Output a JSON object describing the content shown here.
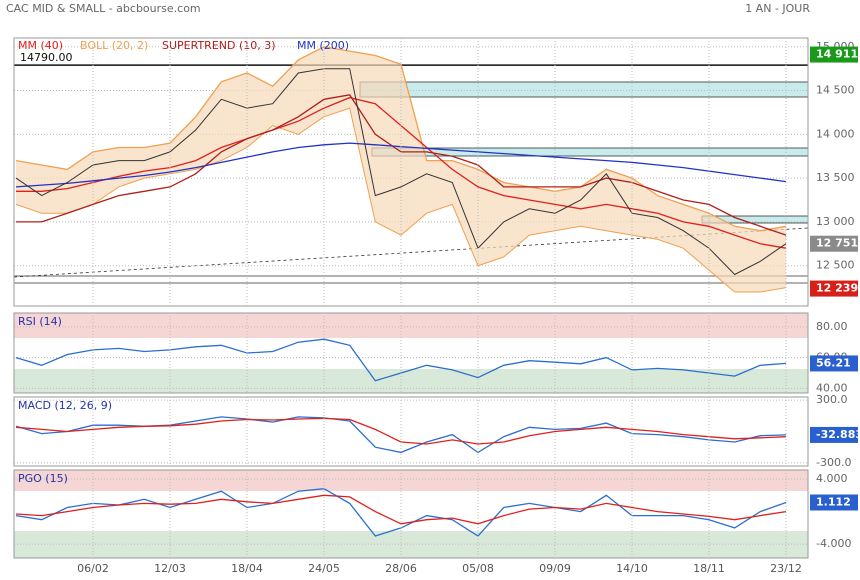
{
  "header": {
    "title": "CAC MID & SMALL - abcbourse.com",
    "period": "1 AN - JOUR"
  },
  "chart_data": [
    {
      "type": "line",
      "ylim": [
        12040,
        15100
      ],
      "yticks": [
        {
          "value": 15000,
          "label": "15 000"
        },
        {
          "value": 14500,
          "label": "14 500"
        },
        {
          "value": 14000,
          "label": "14 000"
        },
        {
          "value": 13500,
          "label": "13 500"
        },
        {
          "value": 13000,
          "label": "13 000"
        },
        {
          "value": 12500,
          "label": "12 500"
        }
      ],
      "annotations": [
        {
          "value": 14790,
          "label": "14790.00"
        }
      ],
      "markers": [
        {
          "value": 14911,
          "label": "14 911",
          "color": "#1a9a1a"
        },
        {
          "value": 12751,
          "label": "12 751",
          "color": "#8a8a8a"
        },
        {
          "value": 12239,
          "label": "12 239",
          "color": "#d8201b"
        }
      ],
      "series": [
        {
          "name": "MM (40)",
          "color": "#e0201b",
          "values": [
            13350,
            13350,
            13380,
            13450,
            13520,
            13580,
            13620,
            13700,
            13850,
            13950,
            14050,
            14150,
            14300,
            14420,
            14350,
            14100,
            13850,
            13600,
            13400,
            13300,
            13250,
            13200,
            13150,
            13200,
            13150,
            13100,
            13000,
            12950,
            12850,
            12750,
            12700
          ]
        },
        {
          "name": "BOLL (20, 2)",
          "color": "#f0a050",
          "values": [
            13700,
            13650,
            13600,
            13800,
            13850,
            13850,
            13900,
            14200,
            14600,
            14700,
            14550,
            14850,
            15000,
            14950,
            14900,
            14800,
            13700,
            13700,
            13600,
            13450,
            13400,
            13350,
            13400,
            13600,
            13500,
            13300,
            13200,
            13100,
            12950,
            12900,
            12950
          ],
          "lower": [
            13200,
            13100,
            13100,
            13200,
            13400,
            13500,
            13550,
            13600,
            13700,
            13850,
            14100,
            14000,
            14200,
            14300,
            13000,
            12850,
            13100,
            13200,
            12500,
            12600,
            12850,
            12900,
            12950,
            12900,
            12850,
            12800,
            12700,
            12450,
            12200,
            12200,
            12250
          ]
        },
        {
          "name": "SUPERTREND (10, 3)",
          "color": "#b0201b",
          "values": [
            13000,
            13000,
            13100,
            13200,
            13300,
            13350,
            13400,
            13550,
            13800,
            13950,
            14050,
            14200,
            14400,
            14450,
            14000,
            13800,
            13800,
            13750,
            13650,
            13400,
            13400,
            13400,
            13400,
            13500,
            13450,
            13350,
            13250,
            13200,
            13050,
            12950,
            12850
          ]
        },
        {
          "name": "MM (200)",
          "color": "#2233c8",
          "values": [
            13400,
            13420,
            13440,
            13470,
            13500,
            13530,
            13570,
            13620,
            13680,
            13740,
            13800,
            13850,
            13880,
            13900,
            13880,
            13860,
            13840,
            13820,
            13800,
            13780,
            13760,
            13740,
            13720,
            13700,
            13680,
            13650,
            13620,
            13580,
            13540,
            13500,
            13460
          ]
        },
        {
          "color": "#333333",
          "values": [
            13500,
            13300,
            13450,
            13650,
            13700,
            13700,
            13800,
            14050,
            14400,
            14300,
            14350,
            14700,
            14750,
            14750,
            13300,
            13400,
            13550,
            13450,
            12700,
            13000,
            13150,
            13100,
            13250,
            13550,
            13100,
            13050,
            12900,
            12700,
            12400,
            12550,
            12751
          ]
        }
      ]
    },
    {
      "type": "line",
      "title": "RSI (14)",
      "ylim": [
        37,
        89
      ],
      "yticks": [
        {
          "value": 80,
          "label": "80.00"
        },
        {
          "value": 60,
          "label": "60.00"
        },
        {
          "value": 40,
          "label": "40.00"
        }
      ],
      "markers": [
        {
          "value": 56.21,
          "color": "#2a5fd0"
        }
      ],
      "series": [
        {
          "color": "#2a6fd0",
          "values": [
            60,
            55,
            62,
            65,
            66,
            64,
            65,
            67,
            68,
            63,
            64,
            70,
            72,
            68,
            45,
            50,
            55,
            52,
            47,
            55,
            58,
            57,
            56,
            60,
            52,
            53,
            52,
            50,
            48,
            55,
            56.21
          ]
        }
      ]
    },
    {
      "type": "line",
      "title": "MACD (12, 26, 9)",
      "ylim": [
        -330,
        330
      ],
      "yticks": [
        {
          "value": 300,
          "label": "300.0"
        },
        {
          "value": -300,
          "label": "-300.0"
        }
      ],
      "markers": [
        {
          "value": -32.883,
          "color": "#2a5fd0"
        }
      ],
      "series": [
        {
          "color": "#2a6fd0",
          "values": [
            50,
            -20,
            0,
            60,
            60,
            50,
            60,
            100,
            140,
            120,
            90,
            140,
            130,
            100,
            -150,
            -200,
            -100,
            -30,
            -200,
            -50,
            40,
            20,
            30,
            80,
            -20,
            -30,
            -50,
            -80,
            -100,
            -40,
            -32.883
          ]
        },
        {
          "color": "#e0201b",
          "values": [
            40,
            20,
            0,
            20,
            40,
            50,
            55,
            70,
            100,
            115,
            110,
            120,
            125,
            115,
            20,
            -100,
            -120,
            -80,
            -120,
            -100,
            -40,
            0,
            20,
            40,
            20,
            0,
            -30,
            -50,
            -70,
            -60,
            -50
          ]
        }
      ]
    },
    {
      "type": "line",
      "title": "PGO (15)",
      "ylim": [
        -5.7,
        5.1
      ],
      "yticks": [
        {
          "value": 4,
          "label": "4.000"
        },
        {
          "value": -4,
          "label": "-4.000"
        }
      ],
      "markers": [
        {
          "value": 1.112,
          "color": "#2a5fd0"
        }
      ],
      "categories": [
        null,
        null,
        null,
        "06/02",
        null,
        null,
        "12/03",
        null,
        null,
        "18/04",
        null,
        null,
        "24/05",
        null,
        null,
        "28/06",
        null,
        null,
        "05/08",
        null,
        null,
        "09/09",
        null,
        null,
        "14/10",
        null,
        null,
        "18/11",
        null,
        null,
        "23/12"
      ],
      "series": [
        {
          "color": "#2a6fd0",
          "values": [
            -0.5,
            -1,
            0.5,
            1,
            0.8,
            1.5,
            0.5,
            1.5,
            2.5,
            0.5,
            1,
            2.5,
            2.8,
            1,
            -3,
            -2,
            -0.5,
            -1,
            -3,
            0.5,
            1,
            0.5,
            0,
            2,
            -0.5,
            -0.5,
            -0.5,
            -1,
            -2,
            0,
            1.112
          ]
        },
        {
          "color": "#e0201b",
          "values": [
            -0.3,
            -0.5,
            0,
            0.5,
            0.8,
            1,
            0.9,
            1,
            1.5,
            1.2,
            1,
            1.5,
            2,
            1.8,
            0,
            -1.5,
            -1,
            -0.8,
            -1.5,
            -0.5,
            0.3,
            0.5,
            0.3,
            1,
            0.5,
            0,
            -0.3,
            -0.6,
            -1,
            -0.5,
            0
          ]
        }
      ]
    }
  ]
}
